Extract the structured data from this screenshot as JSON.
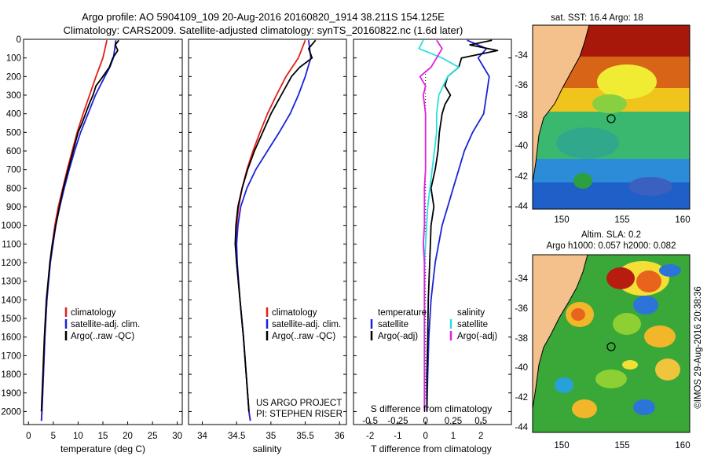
{
  "figure": {
    "title_line1": "Argo profile: AO 5904109_109 20-Aug-2016 20160820_1914 38.211S 154.125E",
    "title_line2": "Climatology: CARS2009. Satellite-adjusted climatology: synTS_20160822.nc (1.6d later)",
    "project_line1": "US ARGO PROJECT",
    "project_line2": "PI: STEPHEN RISER",
    "credit": "©IMOS 29-Aug-2016 20:38:36"
  },
  "colors": {
    "climatology": "#e0201a",
    "satellite": "#1a22d8",
    "argo": "#000000",
    "sat_salinity": "#28e0e0",
    "argo_salinity_diff": "#e020e0",
    "land": "#f4c08c"
  },
  "maps": {
    "sst_title": "sat. SST: 16.4 Argo: 18",
    "sla_title_line1": "Altim. SLA: 0.2",
    "sla_title_line2": "Argo h1000: 0.057 h2000: 0.082",
    "lat_ticks": [
      "-34",
      "-36",
      "-38",
      "-40",
      "-42",
      "-44"
    ],
    "lon_ticks": [
      "150",
      "155",
      "160"
    ],
    "lat_range": [
      -44.5,
      -32.5
    ],
    "lon_range": [
      147.8,
      160.5
    ],
    "float_position": {
      "lat": -38.211,
      "lon": 154.125
    }
  },
  "chart_data": [
    {
      "type": "line",
      "id": "temperature",
      "xlabel": "temperature (deg C)",
      "ylabel": "",
      "xlim": [
        -1,
        31
      ],
      "ylim": [
        2070,
        0
      ],
      "x_ticks": [
        "0",
        "5",
        "10",
        "15",
        "20",
        "25",
        "30"
      ],
      "y_ticks": [
        "0",
        "100",
        "200",
        "300",
        "400",
        "500",
        "600",
        "700",
        "800",
        "900",
        "1000",
        "1100",
        "1200",
        "1300",
        "1400",
        "1500",
        "1600",
        "1700",
        "1800",
        "1900",
        "2000"
      ],
      "legend": [
        "climatology",
        "satellite-adj. clim.",
        "Argo(..raw -QC)"
      ],
      "series": [
        {
          "name": "climatology",
          "depth": [
            5,
            100,
            200,
            300,
            400,
            500,
            600,
            700,
            800,
            900,
            1000,
            1200,
            1400,
            1600,
            1800,
            2000,
            2050
          ],
          "values": [
            15.8,
            15.0,
            13.6,
            12.3,
            11.0,
            9.8,
            8.8,
            7.8,
            6.9,
            6.0,
            5.3,
            4.3,
            3.7,
            3.3,
            3.0,
            2.7,
            2.6
          ]
        },
        {
          "name": "satellite-adj. clim.",
          "depth": [
            5,
            50,
            100,
            150,
            200,
            300,
            400,
            500,
            600,
            700,
            800,
            900,
            1000,
            1200,
            1400,
            1600,
            1800,
            2000,
            2050
          ],
          "values": [
            17.6,
            17.4,
            17.1,
            16.4,
            15.4,
            13.5,
            12.0,
            10.5,
            9.3,
            8.2,
            7.2,
            6.3,
            5.5,
            4.4,
            3.7,
            3.3,
            3.0,
            2.7,
            2.6
          ]
        },
        {
          "name": "Argo(..raw -QC)",
          "depth": [
            5,
            30,
            60,
            100,
            150,
            200,
            250,
            300,
            350,
            400,
            450,
            500,
            600,
            700,
            800,
            900,
            1000,
            1100,
            1200,
            1400,
            1600,
            1800,
            2000
          ],
          "values": [
            18.2,
            17.5,
            18.0,
            17.0,
            16.3,
            15.0,
            13.6,
            13.0,
            12.2,
            11.5,
            10.8,
            10.0,
            9.0,
            8.0,
            7.0,
            6.2,
            5.5,
            4.8,
            4.3,
            3.6,
            3.2,
            2.9,
            2.6
          ]
        }
      ]
    },
    {
      "type": "line",
      "id": "salinity",
      "xlabel": "salinity",
      "ylabel": "",
      "xlim": [
        33.8,
        36.1
      ],
      "ylim": [
        2070,
        0
      ],
      "x_ticks": [
        "34",
        "34.5",
        "35",
        "35.5",
        "36"
      ],
      "legend": [
        "climatology",
        "satellite-adj. clim.",
        "Argo(..raw -QC)"
      ],
      "series": [
        {
          "name": "climatology",
          "depth": [
            5,
            100,
            200,
            300,
            400,
            500,
            600,
            700,
            800,
            900,
            1000,
            1100,
            1200,
            1400,
            1600,
            1800,
            2000,
            2050
          ],
          "values": [
            35.5,
            35.4,
            35.22,
            35.08,
            34.95,
            34.84,
            34.74,
            34.65,
            34.58,
            34.53,
            34.5,
            34.49,
            34.5,
            34.55,
            34.6,
            34.64,
            34.68,
            34.7
          ]
        },
        {
          "name": "satellite-adj. clim.",
          "depth": [
            5,
            100,
            200,
            300,
            400,
            500,
            600,
            700,
            800,
            900,
            1000,
            1100,
            1200,
            1400,
            1600,
            1800,
            2000,
            2050
          ],
          "values": [
            35.55,
            35.58,
            35.5,
            35.4,
            35.28,
            35.12,
            34.95,
            34.78,
            34.65,
            34.56,
            34.52,
            34.5,
            34.51,
            34.55,
            34.6,
            34.64,
            34.68,
            34.7
          ]
        },
        {
          "name": "Argo(..raw -QC)",
          "depth": [
            5,
            50,
            100,
            150,
            200,
            300,
            400,
            500,
            600,
            700,
            800,
            900,
            1000,
            1100,
            1200,
            1400,
            1600,
            1800,
            2000
          ],
          "values": [
            35.65,
            35.55,
            35.6,
            35.42,
            35.3,
            35.15,
            35.0,
            34.88,
            34.76,
            34.66,
            34.58,
            34.52,
            34.49,
            34.48,
            34.5,
            34.55,
            34.6,
            34.64,
            34.68
          ]
        }
      ]
    },
    {
      "type": "line",
      "id": "differences",
      "xlabel": "T difference from climatology",
      "xlabel_top": "S difference from climatology",
      "ylabel": "",
      "xlim": [
        -2.6,
        3.1
      ],
      "ylim": [
        2070,
        0
      ],
      "x_ticks": [
        "-2",
        "-1",
        "0",
        "1",
        "2"
      ],
      "x2_ticks": [
        "-0.5",
        "-0.25",
        "0",
        "0.25",
        "0.5"
      ],
      "legend_headers": [
        "temperature",
        "salinity"
      ],
      "legend": [
        "satellite",
        "Argo(-adj)",
        "satellite",
        "Argo(-adj)"
      ],
      "series": [
        {
          "name": "temperature satellite",
          "depth": [
            5,
            50,
            100,
            150,
            200,
            300,
            400,
            500,
            600,
            700,
            800,
            900,
            1000,
            1200,
            1400,
            1600,
            1800,
            2000
          ],
          "values": [
            1.5,
            2.2,
            1.9,
            2.1,
            2.3,
            2.2,
            2.1,
            1.7,
            1.4,
            1.2,
            1.0,
            0.8,
            0.6,
            0.35,
            0.2,
            0.12,
            0.08,
            0.05
          ]
        },
        {
          "name": "temperature Argo(-adj)",
          "depth": [
            5,
            30,
            60,
            100,
            150,
            200,
            250,
            300,
            350,
            400,
            500,
            600,
            700,
            800,
            900,
            1000,
            1200,
            1400,
            1600,
            1800,
            2000
          ],
          "values": [
            2.4,
            1.6,
            2.6,
            1.3,
            1.2,
            0.8,
            0.7,
            0.9,
            0.7,
            0.6,
            0.5,
            0.45,
            0.35,
            0.2,
            0.3,
            0.2,
            0.15,
            0.1,
            0.08,
            0.05,
            0.05
          ]
        },
        {
          "name": "salinity satellite",
          "depth": [
            5,
            50,
            100,
            150,
            200,
            300,
            400,
            500,
            600,
            700,
            800,
            900,
            1000,
            1200,
            1400,
            1600,
            1800,
            2000
          ],
          "values": [
            -0.02,
            -0.06,
            0.15,
            0.3,
            0.2,
            0.12,
            0.1,
            0.1,
            0.08,
            0.06,
            0.04,
            0.02,
            0.01,
            -0.01,
            -0.01,
            -0.01,
            -0.01,
            -0.01
          ]
        },
        {
          "name": "salinity Argo(-adj)",
          "depth": [
            5,
            50,
            100,
            150,
            200,
            250,
            300,
            400,
            500,
            600,
            700,
            800,
            900,
            1000,
            1100,
            1200,
            1400,
            1600,
            1800,
            2000
          ],
          "values": [
            0.1,
            0.15,
            0.1,
            0.05,
            -0.05,
            0.0,
            -0.02,
            0.0,
            0.0,
            0.0,
            0.0,
            -0.01,
            -0.01,
            -0.01,
            -0.02,
            -0.01,
            -0.01,
            -0.01,
            -0.01,
            -0.01
          ]
        }
      ]
    }
  ]
}
